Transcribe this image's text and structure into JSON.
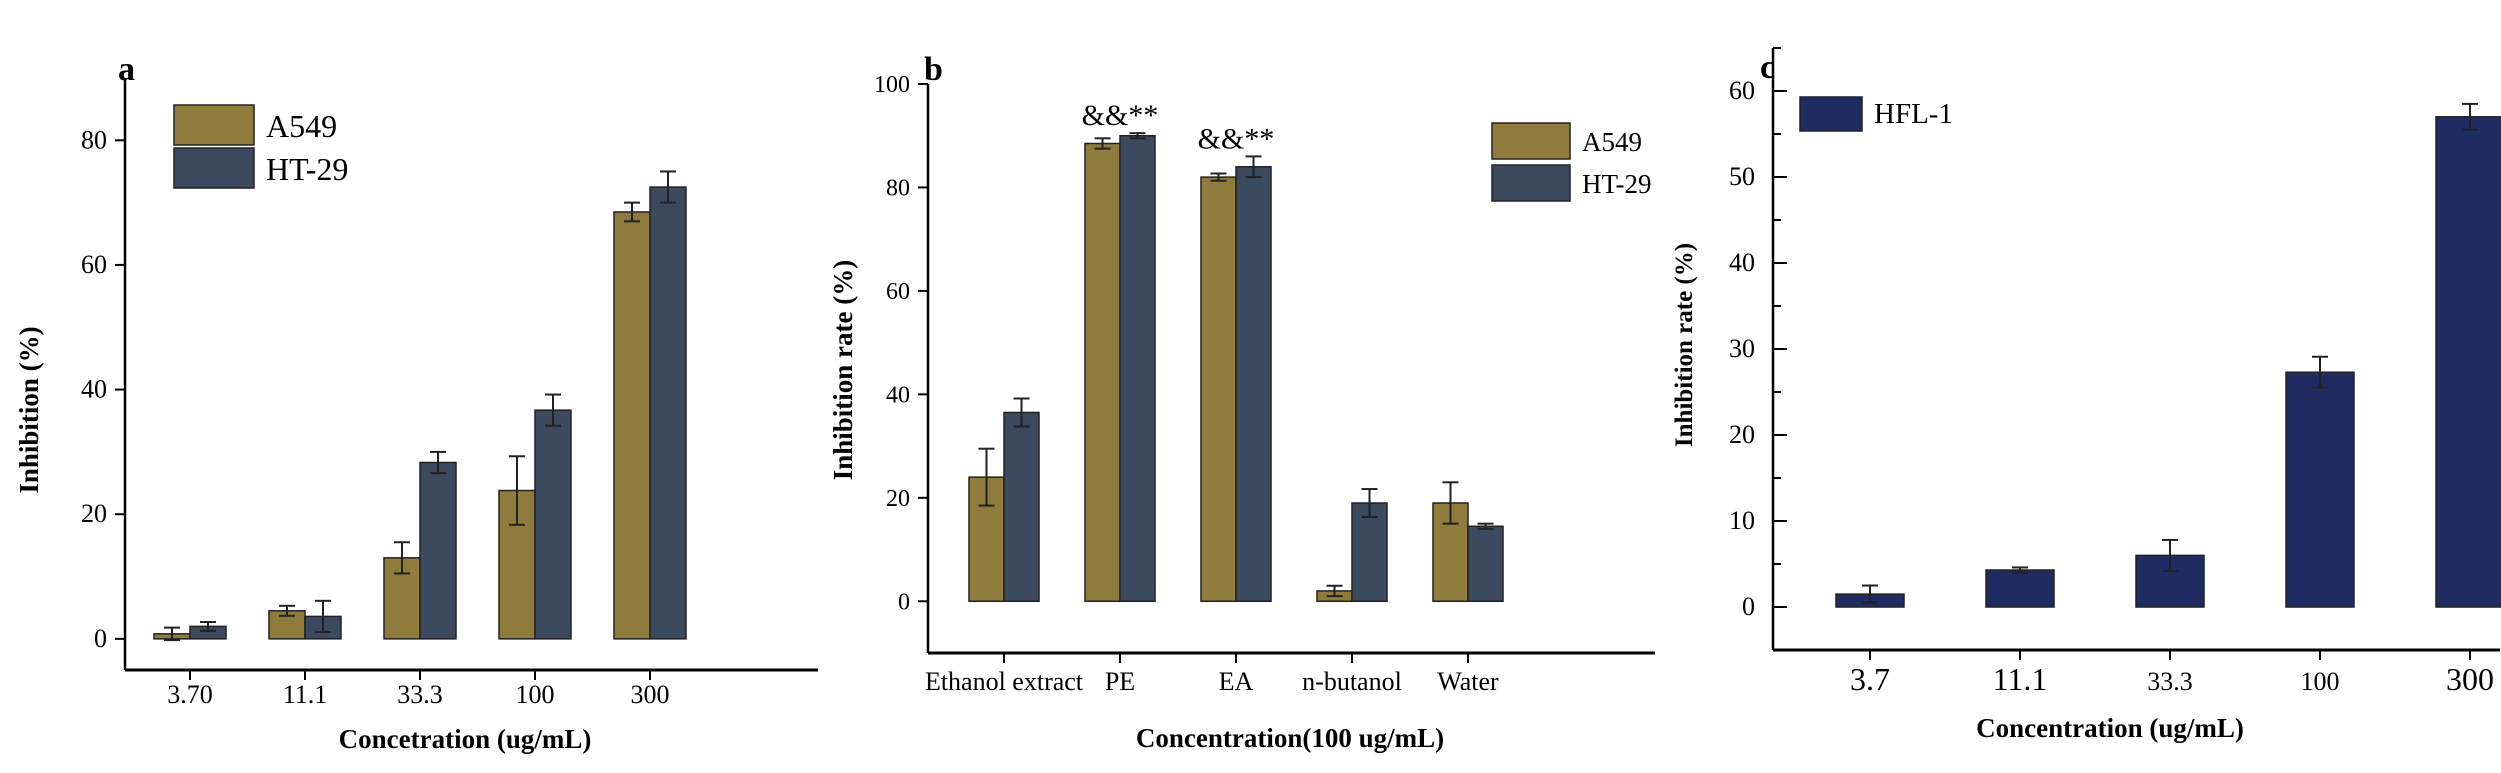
{
  "colors": {
    "a549": "#8f7c3c",
    "ht29": "#3b4a5e",
    "hfl1": "#1f2b63",
    "axis": "#000000"
  },
  "chart_data": [
    {
      "panel": "a",
      "type": "bar",
      "title": "",
      "xlabel": "Concetration (ug/mL)",
      "ylabel": "Inhibition (%)",
      "ylim": [
        -5,
        90
      ],
      "yticks": [
        0,
        20,
        40,
        60,
        80
      ],
      "ytick_labels": [
        "0",
        "20",
        "40",
        "60",
        "80"
      ],
      "categories": [
        "3.70",
        "11.1",
        "33.3",
        "100",
        "300"
      ],
      "legend": "top-left",
      "series": [
        {
          "name": "A549",
          "color_key": "a549",
          "values": [
            0.8,
            4.5,
            13.0,
            23.8,
            68.5
          ],
          "errors": [
            1.0,
            0.8,
            2.5,
            5.5,
            1.5
          ]
        },
        {
          "name": "HT-29",
          "color_key": "ht29",
          "values": [
            2.0,
            3.6,
            28.3,
            36.7,
            72.5
          ],
          "errors": [
            0.7,
            2.5,
            1.7,
            2.5,
            2.5
          ]
        }
      ]
    },
    {
      "panel": "b",
      "type": "bar",
      "title": "",
      "xlabel": "Concentration(100 ug/mL)",
      "ylabel": "Inhibition rate (%)",
      "ylim": [
        -10,
        100
      ],
      "yticks": [
        0,
        20,
        40,
        60,
        80,
        100
      ],
      "ytick_labels": [
        "0",
        "20",
        "40",
        "60",
        "80",
        "100"
      ],
      "categories": [
        "Ethanol extract",
        "PE",
        "EA",
        "n-butanol",
        "Water"
      ],
      "legend": "top-right",
      "annotations": [
        {
          "category_index": 1,
          "text": "&&**"
        },
        {
          "category_index": 2,
          "text": "&&**"
        }
      ],
      "series": [
        {
          "name": "A549",
          "color_key": "a549",
          "values": [
            24.0,
            88.5,
            82.0,
            2.0,
            19.0
          ],
          "errors": [
            5.5,
            1.0,
            0.7,
            1.0,
            4.0
          ]
        },
        {
          "name": "HT-29",
          "color_key": "ht29",
          "values": [
            36.5,
            90.0,
            84.0,
            19.0,
            14.5
          ],
          "errors": [
            2.7,
            0.5,
            2.0,
            2.7,
            0.5
          ]
        }
      ]
    },
    {
      "panel": "c",
      "type": "bar",
      "title": "",
      "xlabel": "Concentration (ug/mL)",
      "ylabel": "Inhibition rate (%)",
      "ylim": [
        -5,
        65
      ],
      "yticks": [
        0,
        10,
        20,
        30,
        40,
        50,
        60
      ],
      "ytick_labels": [
        "0",
        "10",
        "20",
        "30",
        "40",
        "50",
        "60"
      ],
      "categories": [
        "3.7",
        "11.1",
        "33.3",
        "100",
        "300"
      ],
      "legend": "top-left",
      "series": [
        {
          "name": "HFL-1",
          "color_key": "hfl1",
          "values": [
            1.5,
            4.3,
            6.0,
            27.3,
            57.0
          ],
          "errors": [
            1.0,
            0.3,
            1.8,
            1.8,
            1.5
          ]
        }
      ]
    }
  ]
}
